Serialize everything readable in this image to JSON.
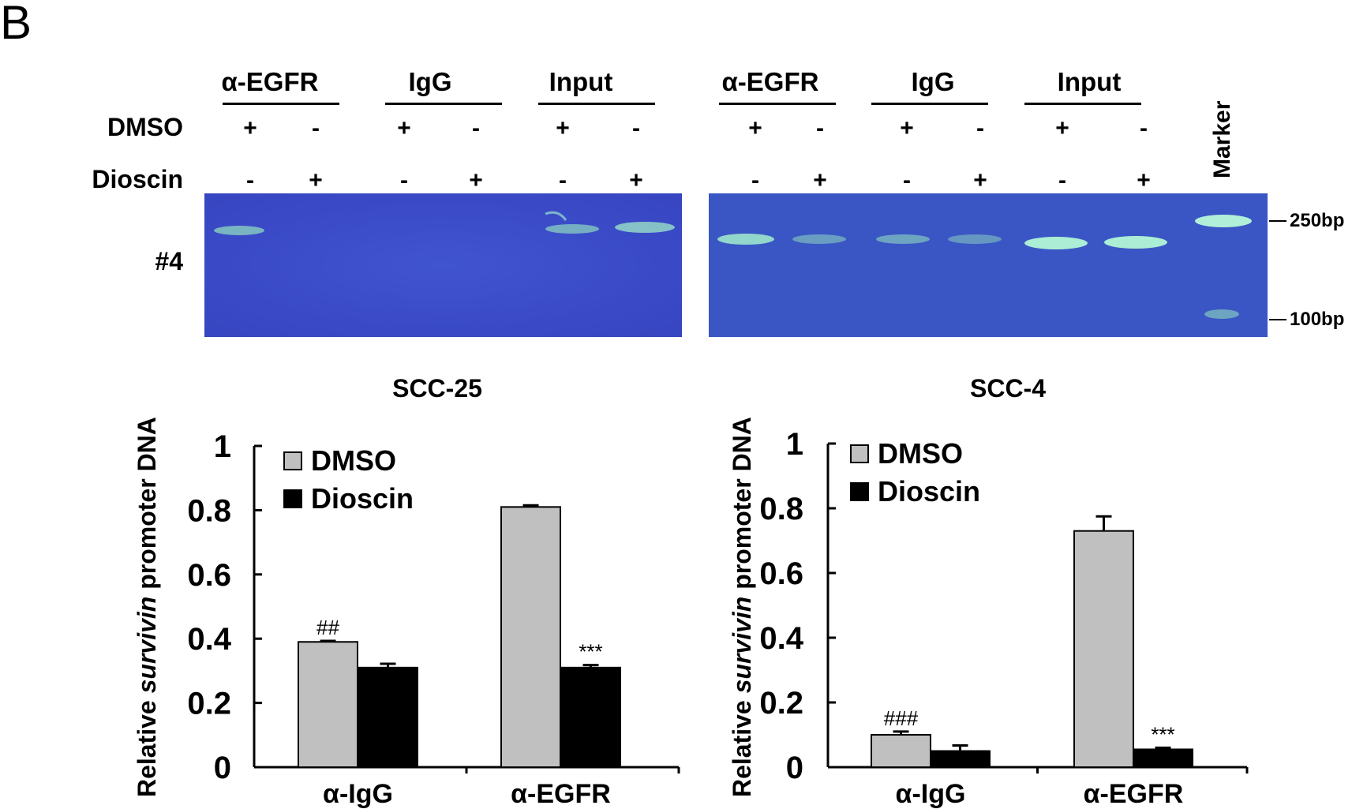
{
  "panel_letter": "B",
  "gel_groups": [
    "α-EGFR",
    "IgG",
    "Input"
  ],
  "row_labels": {
    "dmso": "DMSO",
    "dioscin": "Dioscin",
    "sample": "#4"
  },
  "dmso_signs": [
    "+",
    "-",
    "+",
    "-",
    "+",
    "-"
  ],
  "dioscin_signs": [
    "-",
    "+",
    "-",
    "+",
    "-",
    "+"
  ],
  "marker_label": "Marker",
  "bp_labels": {
    "top": "250bp",
    "bottom": "100bp"
  },
  "colors": {
    "gel": "#3d4fc9",
    "gel_right": "#3b58c2",
    "band": "#a8f0c8",
    "dmso_bar": "#c0c0c0",
    "dioscin_bar": "#000000"
  },
  "ylabel": {
    "prefix": "Relative ",
    "italic": "survivin",
    "suffix": " promoter DNA"
  },
  "chart_data": [
    {
      "type": "bar",
      "title": "SCC-25",
      "categories": [
        "α-IgG",
        "α-EGFR"
      ],
      "series": [
        {
          "name": "DMSO",
          "values": [
            0.39,
            0.81
          ],
          "errors": [
            0.003,
            0.005
          ]
        },
        {
          "name": "Dioscin",
          "values": [
            0.31,
            0.31
          ],
          "errors": [
            0.012,
            0.008
          ]
        }
      ],
      "annotations": [
        {
          "text": "##",
          "category": "α-IgG",
          "series": "DMSO"
        },
        {
          "text": "***",
          "category": "α-EGFR",
          "series": "Dioscin"
        }
      ],
      "ylim": [
        0,
        1
      ],
      "yticks": [
        "0",
        "0.2",
        "0.4",
        "0.6",
        "0.8",
        "1"
      ],
      "legend": "top-left"
    },
    {
      "type": "bar",
      "title": "SCC-4",
      "categories": [
        "α-IgG",
        "α-EGFR"
      ],
      "series": [
        {
          "name": "DMSO",
          "values": [
            0.1,
            0.73
          ],
          "errors": [
            0.01,
            0.045
          ]
        },
        {
          "name": "Dioscin",
          "values": [
            0.05,
            0.055
          ],
          "errors": [
            0.017,
            0.005
          ]
        }
      ],
      "annotations": [
        {
          "text": "###",
          "category": "α-IgG",
          "series": "DMSO"
        },
        {
          "text": "***",
          "category": "α-EGFR",
          "series": "Dioscin"
        }
      ],
      "ylim": [
        0,
        1
      ],
      "yticks": [
        "0",
        "0.2",
        "0.4",
        "0.6",
        "0.8",
        "1"
      ],
      "legend": "top-left"
    }
  ]
}
